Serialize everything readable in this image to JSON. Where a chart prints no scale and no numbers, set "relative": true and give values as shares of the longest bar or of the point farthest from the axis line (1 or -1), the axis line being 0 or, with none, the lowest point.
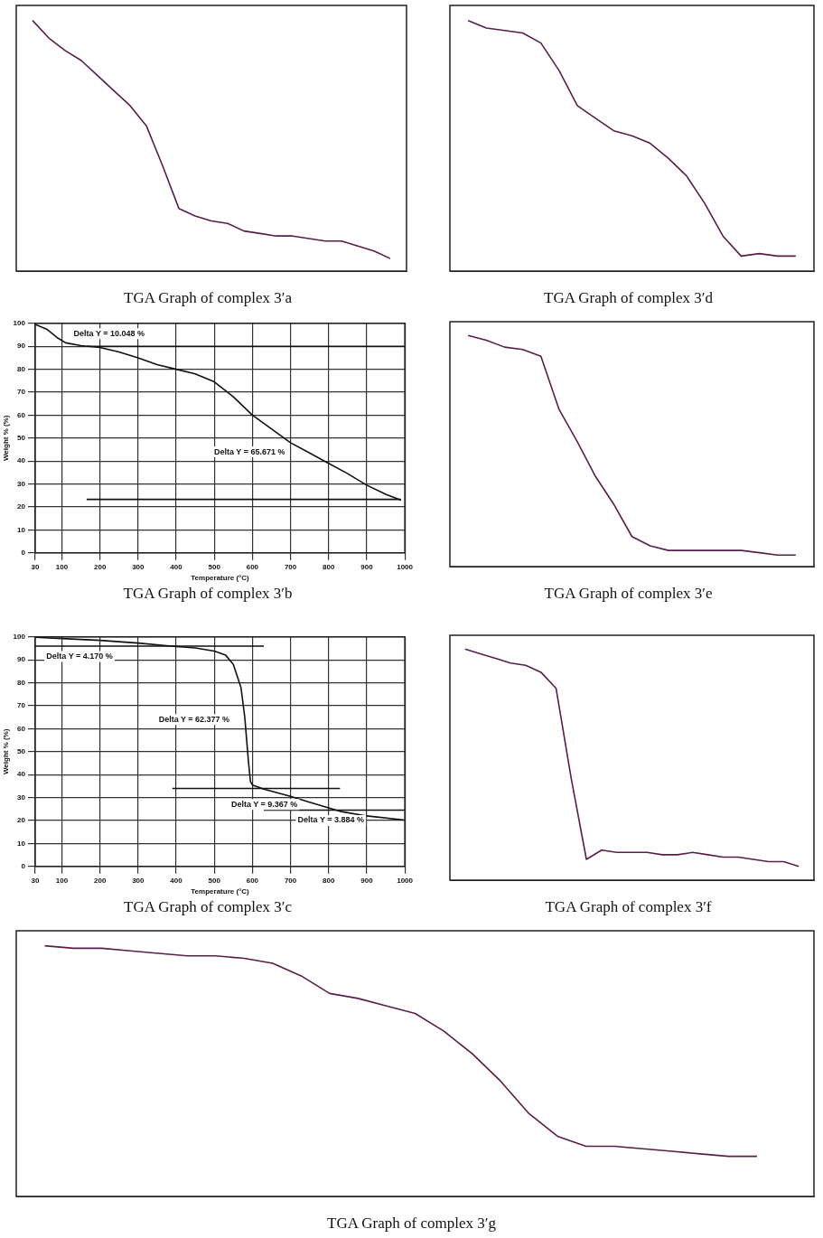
{
  "chart_data": [
    {
      "type": "line",
      "title": "TGA Graph of complex 3′a",
      "relative": true,
      "tick_labels": false,
      "categories": [
        null,
        null,
        null,
        null,
        null,
        null,
        null,
        null,
        null,
        null,
        null,
        null,
        null,
        null,
        null,
        null,
        null,
        null,
        null,
        null,
        null,
        null,
        null,
        null,
        null
      ],
      "series": [
        {
          "color": "#5a1e4a",
          "values": [
            null,
            1,
            0.93,
            0.88,
            0.84,
            0.78,
            0.72,
            0.66,
            0.58,
            0.42,
            0.25,
            0.22,
            0.2,
            0.19,
            0.16,
            0.15,
            0.14,
            0.14,
            0.13,
            0.12,
            0.12,
            0.1,
            0.08,
            0.05,
            null
          ]
        }
      ]
    },
    {
      "type": "line",
      "title": "TGA Graph of complex 3′d",
      "relative": true,
      "tick_labels": false,
      "categories": [
        null,
        null,
        null,
        null,
        null,
        null,
        null,
        null,
        null,
        null,
        null,
        null,
        null,
        null,
        null,
        null,
        null,
        null,
        null,
        null,
        null
      ],
      "series": [
        {
          "color": "#5a1e4a",
          "values": [
            null,
            1,
            0.97,
            0.96,
            0.95,
            0.91,
            0.8,
            0.66,
            0.61,
            0.56,
            0.54,
            0.51,
            0.45,
            0.38,
            0.27,
            0.14,
            0.06,
            0.07,
            0.06,
            0.06,
            null
          ]
        }
      ]
    },
    {
      "type": "line",
      "title": "TGA Graph of complex 3′b",
      "xlabel": "Temperature (°C)",
      "ylabel": "Weight % (%)",
      "grid": true,
      "xlim": [
        30,
        1000
      ],
      "xticks": [
        30,
        100,
        200,
        300,
        400,
        500,
        600,
        700,
        800,
        900,
        1000
      ],
      "ylim": [
        0,
        100
      ],
      "yticks": [
        0,
        10,
        20,
        30,
        40,
        50,
        60,
        70,
        80,
        90,
        100
      ],
      "series": [
        {
          "color": "#111111",
          "x": [
            30,
            60,
            90,
            110,
            150,
            200,
            250,
            300,
            350,
            400,
            450,
            500,
            550,
            600,
            650,
            700,
            750,
            800,
            850,
            900,
            950,
            990
          ],
          "values": [
            99.5,
            97.5,
            93.5,
            91.5,
            90.3,
            89.5,
            87.5,
            85,
            82,
            80,
            78,
            74.5,
            68,
            60,
            54,
            48,
            43.5,
            39,
            34.5,
            29.5,
            25.5,
            23
          ]
        },
        {
          "color": "#111111",
          "x": [
            165,
            1000
          ],
          "values": [
            90,
            90
          ]
        },
        {
          "color": "#111111",
          "x": [
            165,
            990
          ],
          "values": [
            23.3,
            23.3
          ]
        }
      ],
      "annotations": [
        "Delta Y = 10.048 %",
        "Delta Y = 65.671 %"
      ]
    },
    {
      "type": "line",
      "title": "TGA Graph of complex 3′e",
      "relative": true,
      "tick_labels": false,
      "categories": [
        null,
        null,
        null,
        null,
        null,
        null,
        null,
        null,
        null,
        null,
        null,
        null,
        null,
        null,
        null,
        null,
        null,
        null,
        null,
        null,
        null
      ],
      "series": [
        {
          "color": "#5a1e4a",
          "values": [
            null,
            1,
            0.98,
            0.95,
            0.94,
            0.91,
            0.68,
            0.54,
            0.39,
            0.27,
            0.13,
            0.09,
            0.07,
            0.07,
            0.07,
            0.07,
            0.07,
            0.06,
            0.05,
            0.05,
            null
          ]
        }
      ]
    },
    {
      "type": "line",
      "title": "TGA Graph of complex 3′c",
      "xlabel": "Temperature (°C)",
      "ylabel": "Weight % (%)",
      "grid": true,
      "xlim": [
        30,
        1000
      ],
      "xticks": [
        30,
        100,
        200,
        300,
        400,
        500,
        600,
        700,
        800,
        900,
        1000
      ],
      "ylim": [
        0,
        100
      ],
      "yticks": [
        0,
        10,
        20,
        30,
        40,
        50,
        60,
        70,
        80,
        90,
        100
      ],
      "series": [
        {
          "color": "#111111",
          "x": [
            30,
            100,
            200,
            300,
            400,
            450,
            500,
            530,
            550,
            570,
            580,
            585,
            590,
            595,
            600,
            630,
            700,
            750,
            800,
            830,
            900,
            1000
          ],
          "values": [
            99.8,
            99.3,
            98.5,
            97.3,
            95.8,
            95.2,
            93.8,
            92,
            88,
            78,
            65,
            55,
            45,
            37,
            35.5,
            33.7,
            30.5,
            28,
            25.5,
            24,
            22,
            20.2
          ]
        },
        {
          "color": "#111111",
          "x": [
            30,
            630
          ],
          "values": [
            96,
            96
          ]
        },
        {
          "color": "#111111",
          "x": [
            390,
            830
          ],
          "values": [
            34,
            34
          ]
        },
        {
          "color": "#111111",
          "x": [
            630,
            1000
          ],
          "values": [
            24.5,
            24.5
          ]
        }
      ],
      "annotations": [
        "Delta Y = 4.170 %",
        "Delta Y = 62.377 %",
        "Delta Y = 9.367 %",
        "Delta Y = 3.884 %"
      ]
    },
    {
      "type": "line",
      "title": "TGA Graph of complex 3′f",
      "relative": true,
      "tick_labels": false,
      "categories": [
        null,
        null,
        null,
        null,
        null,
        null,
        null,
        null,
        null,
        null,
        null,
        null,
        null,
        null,
        null,
        null,
        null,
        null,
        null,
        null,
        null,
        null,
        null,
        null,
        null
      ],
      "series": [
        {
          "color": "#5a1e4a",
          "values": [
            null,
            1,
            0.98,
            0.96,
            0.94,
            0.93,
            0.9,
            0.83,
            0.44,
            0.09,
            0.13,
            0.12,
            0.12,
            0.12,
            0.11,
            0.11,
            0.12,
            0.11,
            0.1,
            0.1,
            0.09,
            0.08,
            0.08,
            0.06,
            null
          ]
        }
      ]
    },
    {
      "type": "line",
      "title": "TGA Graph of complex 3′g",
      "relative": true,
      "tick_labels": false,
      "categories": [
        null,
        null,
        null,
        null,
        null,
        null,
        null,
        null,
        null,
        null,
        null,
        null,
        null,
        null,
        null,
        null,
        null,
        null,
        null,
        null,
        null,
        null,
        null,
        null,
        null,
        null,
        null,
        null,
        null
      ],
      "series": [
        {
          "color": "#5a1e4a",
          "values": [
            null,
            1,
            0.99,
            0.99,
            0.98,
            0.97,
            0.96,
            0.96,
            0.95,
            0.93,
            0.88,
            0.81,
            0.79,
            0.76,
            0.73,
            0.66,
            0.57,
            0.46,
            0.33,
            0.24,
            0.2,
            0.2,
            0.19,
            0.18,
            0.17,
            0.16,
            0.16,
            null,
            null
          ]
        }
      ]
    }
  ]
}
